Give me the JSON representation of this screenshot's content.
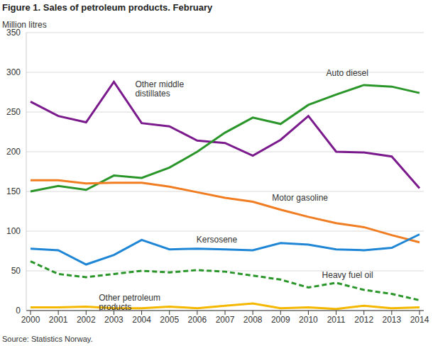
{
  "chart_data": {
    "type": "line",
    "title": "Figure 1. Sales of petroleum products. February",
    "y_label": "Million litres",
    "source": "Source: Statistics Norway.",
    "categories": [
      "2000",
      "2001",
      "2002",
      "2003",
      "2004",
      "2005",
      "2006",
      "2007",
      "2008",
      "2009",
      "2010",
      "2011",
      "2012",
      "2013",
      "2014"
    ],
    "series": [
      {
        "name": "Other middle distillates",
        "color": "#7b1a8c",
        "line_style": "solid",
        "values": [
          263,
          245,
          237,
          288,
          236,
          232,
          214,
          211,
          195,
          215,
          245,
          200,
          199,
          194,
          154
        ]
      },
      {
        "name": "Auto diesel",
        "color": "#2a962a",
        "line_style": "solid",
        "values": [
          150,
          157,
          152,
          170,
          167,
          180,
          200,
          224,
          243,
          235,
          259,
          272,
          284,
          282,
          274
        ]
      },
      {
        "name": "Motor gasoline",
        "color": "#f07d22",
        "line_style": "solid",
        "values": [
          164,
          164,
          160,
          161,
          161,
          156,
          149,
          142,
          137,
          127,
          118,
          110,
          105,
          95,
          86
        ]
      },
      {
        "name": "Kersosene",
        "color": "#1f86d6",
        "line_style": "solid",
        "values": [
          78,
          76,
          58,
          70,
          89,
          77,
          78,
          77,
          76,
          85,
          83,
          77,
          76,
          79,
          96
        ]
      },
      {
        "name": "Heavy fuel oil",
        "color": "#2a962a",
        "line_style": "dashed",
        "values": [
          62,
          46,
          42,
          46,
          50,
          48,
          51,
          49,
          44,
          39,
          29,
          35,
          26,
          21,
          13
        ]
      },
      {
        "name": "Other petroleum products",
        "color": "#f5b800",
        "line_style": "solid",
        "values": [
          4,
          4,
          5,
          3,
          3,
          5,
          3,
          6,
          9,
          3,
          4,
          2,
          6,
          3,
          4
        ]
      }
    ],
    "ylim": [
      0,
      350
    ],
    "yticks": [
      0,
      50,
      100,
      150,
      200,
      250,
      300,
      350
    ],
    "grid": true,
    "marker": "none"
  }
}
